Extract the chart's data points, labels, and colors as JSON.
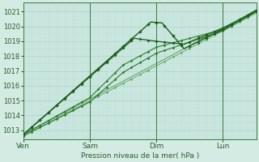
{
  "title": "",
  "xlabel": "Pression niveau de la mer( hPa )",
  "bg_color": "#d4ebe4",
  "plot_bg_color": "#c8e6de",
  "grid_color": "#b8ddd4",
  "grid_color_minor": "#cde8e0",
  "tick_label_color": "#2a5e2a",
  "axis_label_color": "#2a5e2a",
  "x_ticks": [
    0,
    48,
    96,
    144
  ],
  "x_tick_labels": [
    "Ven",
    "Sam",
    "Dim",
    "Lun"
  ],
  "ylim": [
    1012.4,
    1021.6
  ],
  "yticks": [
    1013,
    1014,
    1015,
    1016,
    1017,
    1018,
    1019,
    1020,
    1021
  ],
  "xlim": [
    0,
    168
  ],
  "line_color_dark": "#1e5e1e",
  "line_color_mid": "#2d7a2d",
  "line_color_light": "#5a9e5a",
  "vline_color": "#3a7a3a"
}
